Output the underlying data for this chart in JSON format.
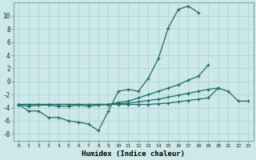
{
  "title": "",
  "xlabel": "Humidex (Indice chaleur)",
  "background_color": "#cce8e8",
  "line_color": "#1e6b6b",
  "grid_color": "#b0d4d4",
  "x_values": [
    0,
    1,
    2,
    3,
    4,
    5,
    6,
    7,
    8,
    9,
    10,
    11,
    12,
    13,
    14,
    15,
    16,
    17,
    18,
    19,
    20,
    21,
    22,
    23
  ],
  "line1": [
    -3.5,
    -4.5,
    -4.5,
    -5.5,
    -5.5,
    -6.0,
    -6.2,
    -6.5,
    -7.5,
    -4.5,
    -1.5,
    -1.2,
    -1.5,
    0.5,
    3.5,
    8.2,
    11.0,
    11.5,
    10.5,
    null,
    null,
    null,
    null,
    null
  ],
  "line2": [
    -3.5,
    -3.8,
    -3.6,
    -3.6,
    -3.8,
    -3.8,
    -3.6,
    -3.8,
    -3.6,
    -3.5,
    -3.2,
    -3.0,
    -2.5,
    -2.0,
    -1.5,
    -1.0,
    -0.5,
    0.2,
    0.8,
    2.5,
    null,
    null,
    null,
    null
  ],
  "line3": [
    -3.5,
    -3.5,
    -3.5,
    -3.5,
    -3.5,
    -3.5,
    -3.5,
    -3.5,
    -3.5,
    -3.5,
    -3.4,
    -3.3,
    -3.1,
    -2.9,
    -2.7,
    -2.4,
    -2.1,
    -1.8,
    -1.5,
    -1.2,
    -1.0,
    null,
    null,
    null
  ],
  "line4": [
    -3.5,
    -3.5,
    -3.5,
    -3.5,
    -3.5,
    -3.5,
    -3.5,
    -3.5,
    -3.5,
    -3.5,
    -3.5,
    -3.5,
    -3.5,
    -3.5,
    -3.4,
    -3.3,
    -3.1,
    -2.9,
    -2.7,
    -2.5,
    -1.0,
    -1.5,
    -3.0,
    -3.0
  ],
  "yticks": [
    -8,
    -6,
    -4,
    -2,
    0,
    2,
    4,
    6,
    8,
    10
  ],
  "ylim": [
    -9,
    12
  ],
  "xlim": [
    -0.5,
    23.5
  ],
  "figsize": [
    3.2,
    2.0
  ],
  "dpi": 100
}
